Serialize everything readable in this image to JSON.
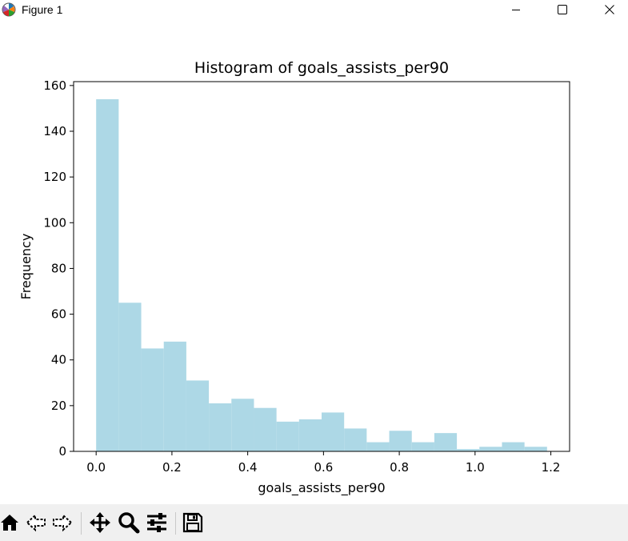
{
  "window": {
    "title": "Figure 1",
    "icons": {
      "app": "matplotlib-icon",
      "minimize": "minimize-icon",
      "maximize": "maximize-icon",
      "close": "close-icon"
    }
  },
  "toolbar": {
    "items": [
      "home-icon",
      "back-arrow-icon",
      "forward-arrow-icon",
      "pan-icon",
      "zoom-icon",
      "configure-subplots-icon",
      "save-icon"
    ]
  },
  "chart_data": {
    "type": "bar",
    "title": "Histogram of goals_assists_per90",
    "xlabel": "goals_assists_per90",
    "ylabel": "Frequency",
    "color": "#add8e6",
    "bin_edges": [
      0.0,
      0.0595,
      0.119,
      0.1785,
      0.238,
      0.2975,
      0.357,
      0.4165,
      0.476,
      0.5355,
      0.595,
      0.6545,
      0.714,
      0.7735,
      0.833,
      0.8925,
      0.952,
      1.0115,
      1.071,
      1.1305,
      1.19
    ],
    "values": [
      154,
      65,
      45,
      48,
      31,
      21,
      23,
      19,
      13,
      14,
      17,
      10,
      4,
      9,
      4,
      8,
      1,
      2,
      4,
      2
    ],
    "xlim": [
      -0.0595,
      1.2495
    ],
    "ylim": [
      0,
      161.7
    ],
    "xticks": [
      0.0,
      0.2,
      0.4,
      0.6,
      0.8,
      1.0,
      1.2
    ],
    "xtick_labels": [
      "0.0",
      "0.2",
      "0.4",
      "0.6",
      "0.8",
      "1.0",
      "1.2"
    ],
    "yticks": [
      0,
      20,
      40,
      60,
      80,
      100,
      120,
      140,
      160
    ],
    "ytick_labels": [
      "0",
      "20",
      "40",
      "60",
      "80",
      "100",
      "120",
      "140",
      "160"
    ],
    "grid": false
  }
}
